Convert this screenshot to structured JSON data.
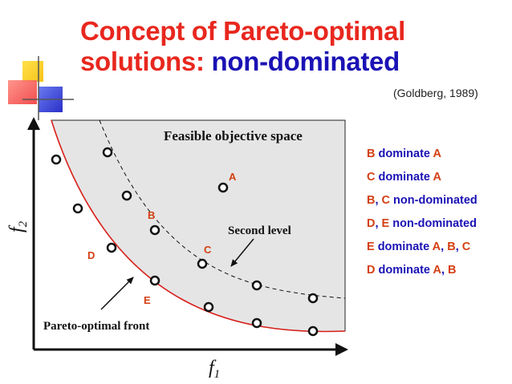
{
  "title": {
    "line1": "Concept of Pareto-optimal",
    "line2_prefix": "solutions: ",
    "line2_highlight": "non-dominated"
  },
  "citation": "(Goldberg, 1989)",
  "axes": {
    "x_label": "f",
    "x_sub": "1",
    "y_label": "f",
    "y_sub": "2"
  },
  "region_label": "Feasible objective space",
  "annotations": {
    "second_level": "Second level",
    "pareto_front": "Pareto-optimal front"
  },
  "point_labels": {
    "A": "A",
    "B": "B",
    "C": "C",
    "D": "D",
    "E": "E"
  },
  "legend": [
    {
      "left": "B",
      "rest": " dominate ",
      "right": "A"
    },
    {
      "left": "C",
      "rest": " dominate ",
      "right": "A"
    },
    {
      "left": "B",
      "sep": ", ",
      "left2": "C",
      "rest": " non-dominated"
    },
    {
      "left": "D",
      "sep": ", ",
      "left2": "E",
      "rest": " non-dominated"
    },
    {
      "left": "E",
      "rest": " dominate ",
      "right": "A",
      "sep2": ", ",
      "right2": "B",
      "sep3": ", ",
      "right3": "C"
    },
    {
      "left": "D",
      "rest": " dominate ",
      "right": "A",
      "sep2": ", ",
      "right2": "B"
    }
  ],
  "colors": {
    "title_red": "#e8271e",
    "title_blue": "#1a12b4",
    "front_red": "#d9201b",
    "label_orange": "#d43f12",
    "region_gray": "#e5e5e5"
  }
}
